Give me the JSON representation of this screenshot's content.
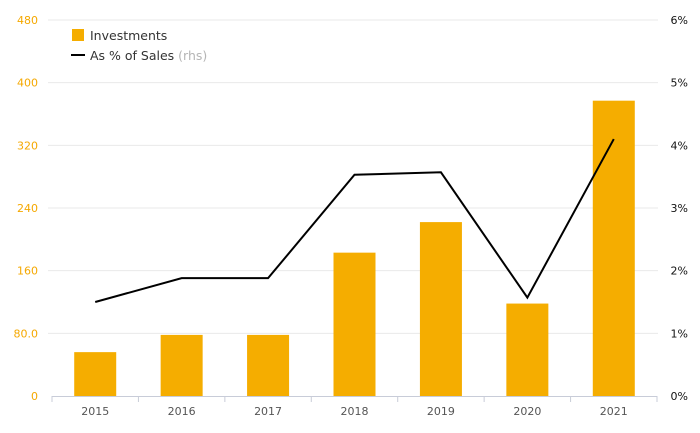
{
  "chart_data": {
    "type": "bar+line",
    "categories": [
      "2015",
      "2016",
      "2017",
      "2018",
      "2019",
      "2020",
      "2021"
    ],
    "series": [
      {
        "name": "Investments",
        "type": "bar",
        "axis": "left",
        "color": "#f5ad00",
        "values": [
          56,
          78,
          78,
          183,
          222,
          118,
          377
        ]
      },
      {
        "name": "As % of Sales",
        "name_suffix": "(rhs)",
        "type": "line",
        "axis": "right",
        "color": "#000000",
        "values": [
          1.5,
          1.88,
          1.88,
          3.53,
          3.57,
          1.57,
          4.1
        ]
      }
    ],
    "y_left": {
      "range": [
        0,
        480
      ],
      "ticks": [
        0,
        80,
        160,
        240,
        320,
        400,
        480
      ],
      "tick_labels": [
        "0",
        "80.0",
        "160",
        "240",
        "320",
        "400",
        "480"
      ],
      "color": "#f5a800"
    },
    "y_right": {
      "range": [
        0,
        6
      ],
      "ticks": [
        0,
        1,
        2,
        3,
        4,
        5,
        6
      ],
      "tick_labels": [
        "0%",
        "1%",
        "2%",
        "3%",
        "4%",
        "5%",
        "6%"
      ],
      "color": "#111111"
    },
    "grid": true,
    "legend": "top-left"
  }
}
